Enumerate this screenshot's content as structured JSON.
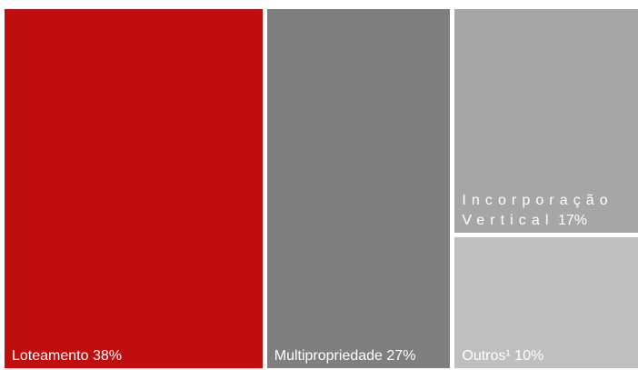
{
  "chart_data": {
    "type": "treemap",
    "categories": [
      "Loteamento",
      "Multipropriedade",
      "Incorporação Vertical",
      "Outros¹"
    ],
    "values": [
      38,
      27,
      17,
      10
    ],
    "value_labels": [
      "38%",
      "27%",
      "17%",
      "10%"
    ],
    "colors": [
      "#c00d0d",
      "#7f7f7f",
      "#a6a6a6",
      "#bfbfbf"
    ]
  }
}
